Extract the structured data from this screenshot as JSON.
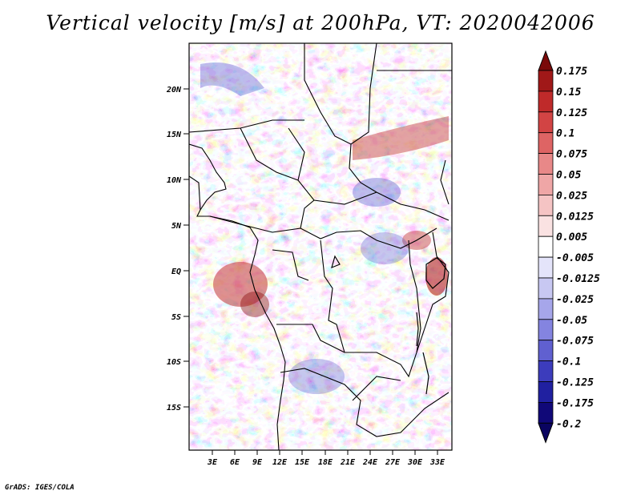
{
  "title": "Vertical velocity [m/s] at 200hPa, VT: 2020042006",
  "footer": "GrADS: IGES/COLA",
  "map": {
    "lat_ticks": [
      "20N",
      "15N",
      "10N",
      "5N",
      "EQ",
      "5S",
      "10S",
      "15S"
    ],
    "lon_ticks": [
      "3E",
      "6E",
      "9E",
      "12E",
      "15E",
      "18E",
      "21E",
      "24E",
      "27E",
      "30E",
      "33E"
    ]
  },
  "colorbar": {
    "levels": [
      "0.175",
      "0.15",
      "0.125",
      "0.1",
      "0.075",
      "0.05",
      "0.025",
      "0.0125",
      "0.005",
      "-0.005",
      "-0.0125",
      "-0.025",
      "-0.05",
      "-0.075",
      "-0.1",
      "-0.125",
      "-0.175",
      "-0.2"
    ],
    "colors": [
      "#7a0a0a",
      "#a01818",
      "#bf2a2a",
      "#d24444",
      "#de6464",
      "#e88888",
      "#efa6a6",
      "#f5c4c4",
      "#fae2e2",
      "#ffffff",
      "#e4e4fa",
      "#c8c8f2",
      "#a6a6ea",
      "#8484e0",
      "#6060d0",
      "#3c3cbc",
      "#2020a0",
      "#100878",
      "#0a0460"
    ]
  }
}
